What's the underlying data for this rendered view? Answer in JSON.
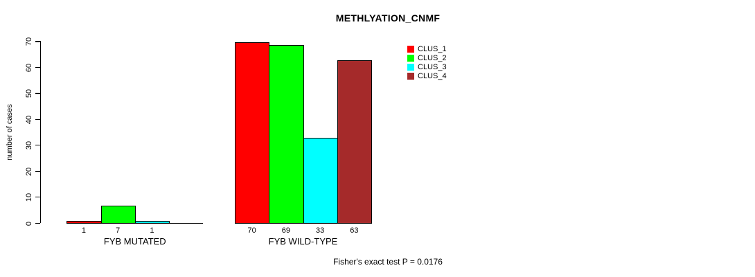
{
  "chart_data": {
    "type": "bar",
    "title": "METHLYATION_CNMF",
    "xlabel": "",
    "ylabel": "number of cases",
    "ylim": [
      0,
      70
    ],
    "yticks": [
      "0",
      "10",
      "20",
      "30",
      "40",
      "50",
      "60",
      "70"
    ],
    "grid": false,
    "legend_position": "top-right",
    "categories": [
      "FYB MUTATED",
      "FYB WILD-TYPE"
    ],
    "series": [
      {
        "name": "CLUS_1",
        "color": "#FF0000",
        "values": [
          1,
          70
        ]
      },
      {
        "name": "CLUS_2",
        "color": "#00FF00",
        "values": [
          7,
          69
        ]
      },
      {
        "name": "CLUS_3",
        "color": "#00FFFF",
        "values": [
          1,
          33
        ]
      },
      {
        "name": "CLUS_4",
        "color": "#A52A2A",
        "values": [
          0,
          63
        ]
      }
    ],
    "bar_value_labels": [
      [
        "1",
        "7",
        "1",
        ""
      ],
      [
        "70",
        "69",
        "33",
        "63"
      ]
    ],
    "annotation": "Fisher's exact test P = 0.0176"
  }
}
